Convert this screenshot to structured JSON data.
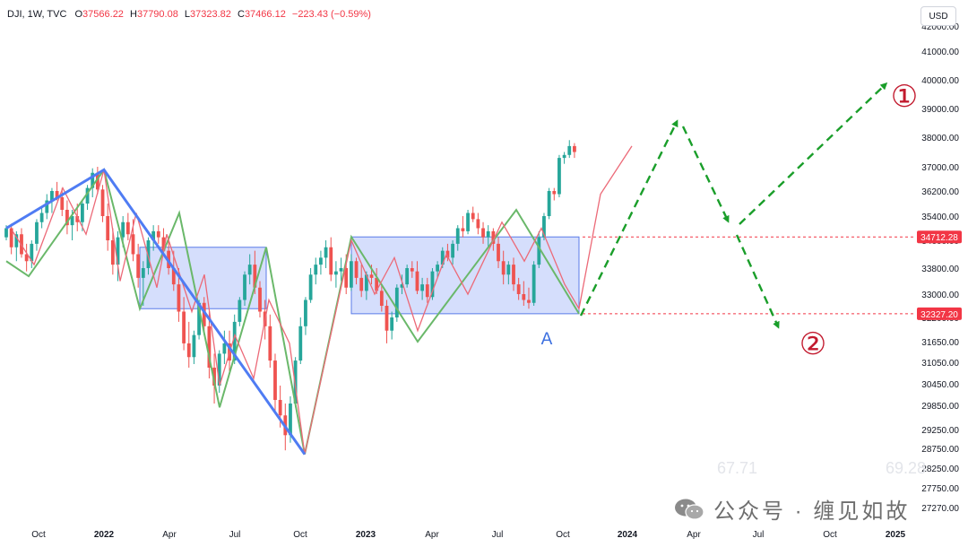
{
  "header": {
    "symbol": "DJI, 1W, TVC",
    "o_label": "O",
    "o_value": "37566.22",
    "h_label": "H",
    "h_value": "37790.08",
    "l_label": "L",
    "l_value": "37323.82",
    "c_label": "C",
    "c_value": "37466.12",
    "change": "−223.43 (−0.59%)"
  },
  "currency": "USD",
  "watermark": "公众号 · 缠见如故",
  "ghost_values": [
    "67.71",
    "69.28"
  ],
  "colors": {
    "up": "#26a69a",
    "down": "#ef5350",
    "wave_green": "#6ab86a",
    "wave_red": "#ec6a78",
    "trend_blue": "#4f7cf3",
    "box_fill": "#c7d3fb",
    "box_stroke": "#5a7be8",
    "projection": "#1a9e2a",
    "price_line": "#f23645",
    "annotation": "#c21a2e",
    "label_a": "#3b6fe0"
  },
  "chart_data": {
    "type": "candlestick",
    "symbol": "DJI",
    "timeframe": "1W",
    "y_axis": {
      "ticks": [
        42000,
        41000,
        40000,
        39000,
        38000,
        37000,
        36200,
        35400,
        34600,
        33800,
        33000,
        32200,
        31650,
        31050,
        30450,
        29850,
        29250,
        28750,
        28250,
        27750,
        27270
      ],
      "tick_labels": [
        "42000.00",
        "41000.00",
        "40000.00",
        "39000.00",
        "38000.00",
        "37000.00",
        "36200.00",
        "35400.00",
        "34600.00",
        "33800.00",
        "33000.00",
        "32200.00",
        "31650.00",
        "31050.00",
        "30450.00",
        "29850.00",
        "29250.00",
        "28750.00",
        "28250.00",
        "27750.00",
        "27270.00"
      ]
    },
    "x_axis": {
      "labels": [
        "Oct",
        "2022",
        "Apr",
        "Jul",
        "Oct",
        "2023",
        "Apr",
        "Jul",
        "Oct",
        "2024",
        "Apr",
        "Jul",
        "Oct",
        "2025"
      ],
      "bold": [
        "2022",
        "2023",
        "2024",
        "2025"
      ]
    },
    "price_lines": [
      {
        "value": 34712.28,
        "label": "34712.28"
      },
      {
        "value": 32327.2,
        "label": "32327.20"
      }
    ],
    "candles": [
      [
        34700,
        35100,
        34600,
        35000
      ],
      [
        35000,
        35150,
        34200,
        34400
      ],
      [
        34400,
        34900,
        34000,
        34800
      ],
      [
        34800,
        35000,
        34100,
        34200
      ],
      [
        34200,
        34500,
        33700,
        34000
      ],
      [
        34000,
        34600,
        33800,
        34500
      ],
      [
        34500,
        35300,
        34300,
        35200
      ],
      [
        35200,
        35700,
        35000,
        35500
      ],
      [
        35500,
        36100,
        35300,
        35900
      ],
      [
        35900,
        36300,
        35500,
        36200
      ],
      [
        36200,
        36500,
        35900,
        36000
      ],
      [
        36000,
        36300,
        35400,
        35600
      ],
      [
        35600,
        35900,
        34800,
        35100
      ],
      [
        35100,
        35600,
        34600,
        35400
      ],
      [
        35400,
        35800,
        34900,
        35200
      ],
      [
        35200,
        35900,
        34900,
        35800
      ],
      [
        35800,
        36400,
        35600,
        36300
      ],
      [
        36300,
        36950,
        36000,
        36800
      ],
      [
        36800,
        37000,
        36100,
        36250
      ],
      [
        36250,
        36400,
        35200,
        35400
      ],
      [
        35400,
        35800,
        34300,
        34600
      ],
      [
        34600,
        35000,
        33600,
        33900
      ],
      [
        33900,
        34900,
        33400,
        34700
      ],
      [
        34700,
        35400,
        34400,
        35200
      ],
      [
        35200,
        35500,
        34600,
        34800
      ],
      [
        34800,
        35300,
        34000,
        34200
      ],
      [
        34200,
        34500,
        33200,
        33500
      ],
      [
        33500,
        34000,
        32600,
        33800
      ],
      [
        33800,
        34700,
        33600,
        34600
      ],
      [
        34600,
        35100,
        34300,
        34900
      ],
      [
        34900,
        35100,
        34500,
        34700
      ],
      [
        34700,
        35000,
        34200,
        34300
      ],
      [
        34300,
        34700,
        33600,
        33800
      ],
      [
        33800,
        34300,
        33100,
        33300
      ],
      [
        33300,
        33800,
        32100,
        32400
      ],
      [
        32400,
        32900,
        31400,
        31600
      ],
      [
        31600,
        32100,
        30900,
        31200
      ],
      [
        31200,
        31900,
        31000,
        31800
      ],
      [
        31800,
        32800,
        31700,
        32700
      ],
      [
        32700,
        32900,
        31800,
        32000
      ],
      [
        32000,
        32400,
        30600,
        30900
      ],
      [
        30900,
        31300,
        29900,
        30400
      ],
      [
        30400,
        31400,
        30200,
        31300
      ],
      [
        31300,
        31900,
        31000,
        31600
      ],
      [
        31600,
        31900,
        30800,
        31100
      ],
      [
        31100,
        32300,
        31000,
        32100
      ],
      [
        32100,
        32900,
        32000,
        32800
      ],
      [
        32800,
        33700,
        32600,
        33600
      ],
      [
        33600,
        34200,
        33300,
        33900
      ],
      [
        33900,
        34300,
        33000,
        33200
      ],
      [
        33200,
        33400,
        32200,
        32400
      ],
      [
        32400,
        32800,
        31700,
        32000
      ],
      [
        32000,
        32300,
        30900,
        31100
      ],
      [
        31100,
        31300,
        29700,
        30000
      ],
      [
        30000,
        30400,
        29300,
        29600
      ],
      [
        29600,
        29900,
        28700,
        29100
      ],
      [
        29100,
        30100,
        28900,
        29900
      ],
      [
        29900,
        31200,
        29800,
        31100
      ],
      [
        31100,
        32200,
        31000,
        32000
      ],
      [
        32000,
        32900,
        31800,
        32800
      ],
      [
        32800,
        33800,
        32700,
        33600
      ],
      [
        33600,
        34100,
        33300,
        33900
      ],
      [
        33900,
        34300,
        33600,
        34100
      ],
      [
        34100,
        34600,
        33800,
        34400
      ],
      [
        34400,
        34700,
        33400,
        33600
      ],
      [
        33600,
        34000,
        33200,
        33700
      ],
      [
        33700,
        34100,
        33400,
        33800
      ],
      [
        33800,
        34200,
        33000,
        33200
      ],
      [
        33200,
        34200,
        33100,
        34000
      ],
      [
        34000,
        34100,
        33300,
        33500
      ],
      [
        33500,
        33900,
        32900,
        33100
      ],
      [
        33100,
        33700,
        32800,
        33600
      ],
      [
        33600,
        33900,
        33300,
        33500
      ],
      [
        33500,
        33800,
        33000,
        33100
      ],
      [
        33100,
        33300,
        32400,
        32600
      ],
      [
        32600,
        32800,
        31600,
        31900
      ],
      [
        31900,
        32400,
        31700,
        32200
      ],
      [
        32200,
        33300,
        32100,
        33200
      ],
      [
        33200,
        33600,
        33000,
        33300
      ],
      [
        33300,
        33900,
        33200,
        33800
      ],
      [
        33800,
        34000,
        33500,
        33700
      ],
      [
        33700,
        34000,
        33000,
        33100
      ],
      [
        33100,
        33500,
        32800,
        33300
      ],
      [
        33300,
        33500,
        32700,
        32900
      ],
      [
        32900,
        33800,
        32800,
        33700
      ],
      [
        33700,
        34000,
        33500,
        33900
      ],
      [
        33900,
        34400,
        33800,
        34300
      ],
      [
        34300,
        34500,
        34000,
        34100
      ],
      [
        34100,
        34600,
        33900,
        34500
      ],
      [
        34500,
        35100,
        34300,
        35000
      ],
      [
        35000,
        35400,
        34700,
        34900
      ],
      [
        34900,
        35600,
        34800,
        35500
      ],
      [
        35500,
        35700,
        35200,
        35300
      ],
      [
        35300,
        35500,
        34800,
        35000
      ],
      [
        35000,
        35200,
        34500,
        34700
      ],
      [
        34700,
        35100,
        34400,
        34900
      ],
      [
        34900,
        35000,
        34300,
        34500
      ],
      [
        34500,
        34700,
        33800,
        34000
      ],
      [
        34000,
        34300,
        33300,
        33600
      ],
      [
        33600,
        34000,
        33300,
        33900
      ],
      [
        33900,
        34100,
        33100,
        33300
      ],
      [
        33300,
        33500,
        32800,
        33000
      ],
      [
        33000,
        33400,
        32600,
        32800
      ],
      [
        32800,
        33200,
        32500,
        32700
      ],
      [
        32700,
        34000,
        32600,
        33900
      ],
      [
        33900,
        34900,
        33800,
        34700
      ],
      [
        34700,
        35500,
        34600,
        35400
      ],
      [
        35400,
        36300,
        35300,
        36200
      ],
      [
        36200,
        36300,
        35900,
        36100
      ],
      [
        36100,
        37400,
        36000,
        37300
      ],
      [
        37300,
        37500,
        37100,
        37400
      ],
      [
        37400,
        37900,
        37300,
        37700
      ],
      [
        37700,
        37800,
        37300,
        37500
      ]
    ],
    "drawings": {
      "zones": [
        {
          "name": "range-box-2022",
          "x_start": "2022-02",
          "x_end": "2022-08",
          "y_top": 34400,
          "y_bottom": 32500
        },
        {
          "name": "range-box-A",
          "x_start": "2022-12",
          "x_end": "2023-10",
          "y_top": 34712.28,
          "y_bottom": 32327.2
        }
      ],
      "labels": [
        "A"
      ],
      "projection_markers": [
        "①",
        "②"
      ],
      "scenarios": [
        {
          "marker": "①",
          "path": "up to ~38800, pullback to ~35500, continuation to ~40200"
        },
        {
          "marker": "②",
          "path": "up to ~38800, pullback, then break below 32327.20"
        }
      ]
    }
  }
}
